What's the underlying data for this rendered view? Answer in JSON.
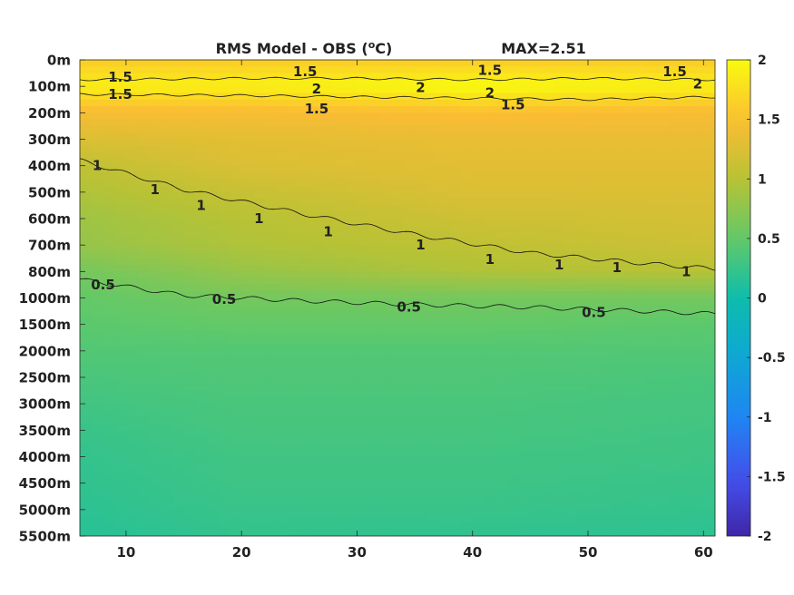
{
  "chart_data": {
    "type": "heatmap",
    "title": "RMS Model - OBS (",
    "title_unit_sup": "o",
    "title_unit_end": "C)",
    "annotation": "MAX=2.51",
    "xlabel": "",
    "ylabel": "",
    "x_ticks": [
      "10",
      "20",
      "30",
      "40",
      "50",
      "60"
    ],
    "x_tick_values": [
      10,
      20,
      30,
      40,
      50,
      60
    ],
    "xlim": [
      6,
      61
    ],
    "y_ticks": [
      "0m",
      "100m",
      "200m",
      "300m",
      "400m",
      "500m",
      "600m",
      "700m",
      "800m",
      "1000m",
      "1500m",
      "2000m",
      "2500m",
      "3000m",
      "3500m",
      "4000m",
      "4500m",
      "5000m",
      "5500m"
    ],
    "colorbar": {
      "ticks": [
        "2",
        "1.5",
        "1",
        "0.5",
        "0",
        "-0.5",
        "-1",
        "-1.5",
        "-2"
      ],
      "tick_values": [
        2,
        1.5,
        1,
        0.5,
        0,
        -0.5,
        -1,
        -1.5,
        -2
      ],
      "range": [
        -2,
        2
      ],
      "colormap": "parula"
    },
    "field": {
      "depth_levels": [
        "0m",
        "100m",
        "200m",
        "300m",
        "400m",
        "500m",
        "600m",
        "700m",
        "800m",
        "1000m",
        "1500m",
        "2000m",
        "2500m",
        "3000m",
        "3500m",
        "4000m",
        "4500m",
        "5000m",
        "5500m"
      ],
      "x": [
        6,
        20,
        40,
        61
      ],
      "values": [
        [
          1.6,
          1.6,
          1.6,
          1.6
        ],
        [
          1.9,
          1.9,
          2.0,
          1.9
        ],
        [
          1.45,
          1.45,
          1.5,
          1.45
        ],
        [
          1.25,
          1.3,
          1.35,
          1.35
        ],
        [
          1.05,
          1.25,
          1.3,
          1.3
        ],
        [
          0.95,
          1.1,
          1.25,
          1.25
        ],
        [
          0.85,
          1.0,
          1.15,
          1.2
        ],
        [
          0.8,
          0.95,
          1.05,
          1.15
        ],
        [
          0.6,
          0.8,
          0.95,
          1.0
        ],
        [
          0.5,
          0.6,
          0.6,
          0.6
        ],
        [
          0.45,
          0.5,
          0.5,
          0.45
        ],
        [
          0.4,
          0.4,
          0.4,
          0.4
        ],
        [
          0.35,
          0.38,
          0.38,
          0.35
        ],
        [
          0.3,
          0.35,
          0.35,
          0.32
        ],
        [
          0.25,
          0.33,
          0.33,
          0.3
        ],
        [
          0.22,
          0.3,
          0.3,
          0.28
        ],
        [
          0.2,
          0.28,
          0.28,
          0.25
        ],
        [
          0.18,
          0.25,
          0.25,
          0.22
        ],
        [
          0.15,
          0.22,
          0.2,
          0.18
        ]
      ]
    },
    "contours": [
      {
        "level": "1.5",
        "x": [
          6,
          20,
          30,
          40,
          50,
          61
        ],
        "depth_index": [
          0.75,
          0.7,
          0.7,
          0.75,
          0.7,
          0.75
        ]
      },
      {
        "level": "1.5",
        "x": [
          6,
          20,
          30,
          40,
          50,
          61
        ],
        "depth_index": [
          1.3,
          1.35,
          1.4,
          1.45,
          1.5,
          1.4
        ]
      },
      {
        "level": "1",
        "x": [
          6,
          15,
          25,
          35,
          45,
          55,
          61
        ],
        "depth_index": [
          3.8,
          4.9,
          5.8,
          6.6,
          7.3,
          7.7,
          7.9
        ]
      },
      {
        "level": "0.5",
        "x": [
          6,
          15,
          25,
          35,
          45,
          55,
          61
        ],
        "depth_index": [
          8.3,
          8.9,
          9.1,
          9.25,
          9.35,
          9.5,
          9.6
        ]
      }
    ],
    "contour_labels": [
      {
        "text": "1.5",
        "x": 9.5,
        "depth_index": 0.65
      },
      {
        "text": "1.5",
        "x": 25.5,
        "depth_index": 0.45
      },
      {
        "text": "1.5",
        "x": 41.5,
        "depth_index": 0.4
      },
      {
        "text": "1.5",
        "x": 57.5,
        "depth_index": 0.45
      },
      {
        "text": "1.5",
        "x": 9.5,
        "depth_index": 1.3
      },
      {
        "text": "1.5",
        "x": 26.5,
        "depth_index": 1.85
      },
      {
        "text": "1.5",
        "x": 43.5,
        "depth_index": 1.7
      },
      {
        "text": "2",
        "x": 26.5,
        "depth_index": 1.1
      },
      {
        "text": "2",
        "x": 35.5,
        "depth_index": 1.05
      },
      {
        "text": "2",
        "x": 41.5,
        "depth_index": 1.25
      },
      {
        "text": "2",
        "x": 59.5,
        "depth_index": 0.9
      },
      {
        "text": "1",
        "x": 7.5,
        "depth_index": 4.0
      },
      {
        "text": "1",
        "x": 12.5,
        "depth_index": 4.9
      },
      {
        "text": "1",
        "x": 16.5,
        "depth_index": 5.5
      },
      {
        "text": "1",
        "x": 21.5,
        "depth_index": 6.0
      },
      {
        "text": "1",
        "x": 27.5,
        "depth_index": 6.5
      },
      {
        "text": "1",
        "x": 35.5,
        "depth_index": 7.0
      },
      {
        "text": "1",
        "x": 41.5,
        "depth_index": 7.55
      },
      {
        "text": "1",
        "x": 47.5,
        "depth_index": 7.75
      },
      {
        "text": "1",
        "x": 52.5,
        "depth_index": 7.85
      },
      {
        "text": "1",
        "x": 58.5,
        "depth_index": 8.0
      },
      {
        "text": "0.5",
        "x": 8.0,
        "depth_index": 8.5
      },
      {
        "text": "0.5",
        "x": 18.5,
        "depth_index": 9.05
      },
      {
        "text": "0.5",
        "x": 34.5,
        "depth_index": 9.35
      },
      {
        "text": "0.5",
        "x": 50.5,
        "depth_index": 9.55
      }
    ]
  }
}
